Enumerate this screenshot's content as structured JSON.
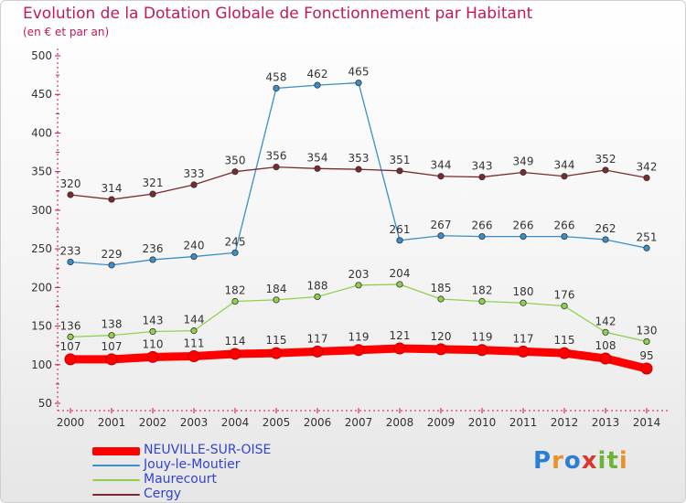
{
  "header": {
    "title": "Evolution de la Dotation Globale de Fonctionnement par Habitant",
    "subtitle": "(en € et par an)"
  },
  "logo": {
    "text": "Proxiti",
    "colors": [
      "#2a7fd4",
      "#e8922b",
      "#2a7fd4",
      "#d8382f",
      "#6ab536",
      "#6ab536",
      "#e8922b"
    ]
  },
  "chart_data": {
    "type": "line",
    "title": "Evolution de la Dotation Globale de Fonctionnement par Habitant",
    "subtitle": "(en € et par an)",
    "xlabel": "",
    "ylabel": "",
    "x": [
      "2000",
      "2001",
      "2002",
      "2003",
      "2004",
      "2005",
      "2006",
      "2007",
      "2008",
      "2009",
      "2010",
      "2011",
      "2012",
      "2013",
      "2014"
    ],
    "yticks": [
      50,
      100,
      150,
      200,
      250,
      300,
      350,
      400,
      450,
      500
    ],
    "ylim": [
      50,
      500
    ],
    "grid": false,
    "legend_position": "bottom-left",
    "series": [
      {
        "name": "NEUVILLE-SUR-OISE",
        "color": "#ff0000",
        "emphasis": true,
        "values": [
          107,
          107,
          110,
          111,
          114,
          115,
          117,
          119,
          121,
          120,
          119,
          117,
          115,
          108,
          95
        ]
      },
      {
        "name": "Jouy-le-Moutier",
        "color": "#3a8fc8",
        "emphasis": false,
        "values": [
          233,
          229,
          236,
          240,
          245,
          458,
          462,
          465,
          261,
          267,
          266,
          266,
          266,
          262,
          251
        ]
      },
      {
        "name": "Maurecourt",
        "color": "#8fd14f",
        "emphasis": false,
        "values": [
          136,
          138,
          143,
          144,
          182,
          184,
          188,
          203,
          204,
          185,
          182,
          180,
          176,
          142,
          130
        ]
      },
      {
        "name": "Cergy",
        "color": "#7a2a2a",
        "emphasis": false,
        "values": [
          320,
          314,
          321,
          333,
          350,
          356,
          354,
          353,
          351,
          344,
          343,
          349,
          344,
          352,
          342
        ]
      }
    ]
  }
}
